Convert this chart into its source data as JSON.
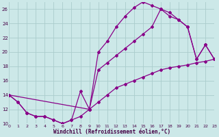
{
  "xlabel": "Windchill (Refroidissement éolien,°C)",
  "background_color": "#cce8e8",
  "grid_color": "#aacccc",
  "line_color": "#880088",
  "x_min": 0,
  "x_max": 23,
  "y_min": 10,
  "y_max": 27,
  "curve_bottom_x": [
    0,
    1,
    2,
    3,
    4,
    5,
    6,
    7,
    8,
    9,
    10,
    11,
    12,
    13,
    14,
    15,
    16,
    17,
    18,
    19,
    20,
    21,
    22,
    23
  ],
  "curve_bottom_y": [
    14,
    13,
    11.5,
    11,
    11,
    10.5,
    10,
    10.5,
    11,
    12,
    13,
    14,
    15,
    15.5,
    16,
    16.5,
    17,
    17.5,
    17.8,
    18,
    18.2,
    18.5,
    18.7,
    19
  ],
  "curve_upper_x": [
    0,
    1,
    2,
    3,
    4,
    5,
    6,
    7,
    8,
    9,
    10,
    11,
    12,
    13,
    14,
    15,
    16,
    17,
    18,
    19,
    20,
    21,
    22,
    23
  ],
  "curve_upper_y": [
    14,
    13,
    11.5,
    11,
    11,
    10.5,
    10,
    10.5,
    14.5,
    12,
    20,
    21.5,
    23.5,
    25,
    26.2,
    27,
    26.5,
    26,
    25,
    24.5,
    23.5,
    19,
    21,
    19
  ],
  "curve_mid_x": [
    0,
    9,
    10,
    11,
    12,
    13,
    14,
    15,
    16,
    17,
    18,
    19,
    20,
    21,
    22,
    23
  ],
  "curve_mid_y": [
    14,
    12,
    17.5,
    18.5,
    19.5,
    20.5,
    21.5,
    22.5,
    23.5,
    26,
    25.5,
    24.5,
    23.5,
    19,
    21,
    19
  ],
  "yticks": [
    10,
    12,
    14,
    16,
    18,
    20,
    22,
    24,
    26
  ],
  "xticks": [
    0,
    1,
    2,
    3,
    4,
    5,
    6,
    7,
    8,
    9,
    10,
    11,
    12,
    13,
    14,
    15,
    16,
    17,
    18,
    19,
    20,
    21,
    22,
    23
  ]
}
